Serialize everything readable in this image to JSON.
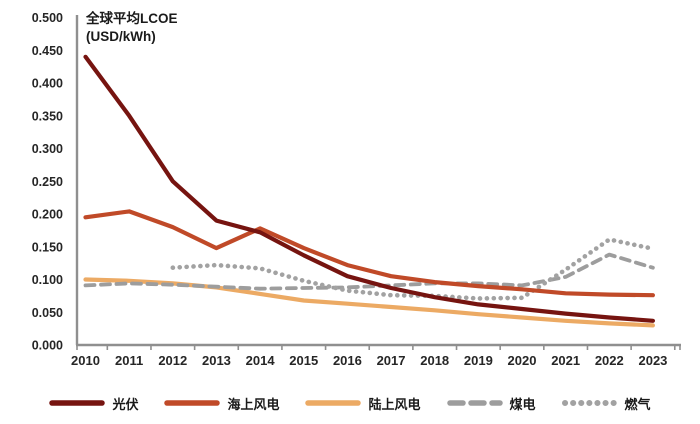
{
  "chart_data": {
    "type": "line",
    "title": "全球平均LCOE",
    "title_unit": "(USD/kWh)",
    "legend_position": "bottom",
    "grid": false,
    "x_categories": [
      "2010",
      "2011",
      "2012",
      "2013",
      "2014",
      "2015",
      "2016",
      "2017",
      "2018",
      "2019",
      "2020",
      "2021",
      "2022",
      "2023"
    ],
    "y_axis": {
      "min": 0.0,
      "max": 0.5,
      "step": 0.05,
      "ticks": [
        "0.500",
        "0.450",
        "0.400",
        "0.350",
        "0.300",
        "0.250",
        "0.200",
        "0.150",
        "0.100",
        "0.050",
        "0.000"
      ]
    },
    "series": [
      {
        "id": "onshore-wind",
        "name": "陆上风电",
        "color": "#ecaa64",
        "style": "solid",
        "legend_order": 3,
        "values": [
          0.1,
          0.098,
          0.094,
          0.088,
          0.078,
          0.068,
          0.063,
          0.058,
          0.053,
          0.047,
          0.042,
          0.037,
          0.033,
          0.03
        ]
      },
      {
        "id": "coal-power",
        "name": "煤电",
        "color": "#9d9d9d",
        "style": "dashed",
        "legend_order": 4,
        "values": [
          0.091,
          0.094,
          0.092,
          0.089,
          0.086,
          0.087,
          0.088,
          0.091,
          0.094,
          0.094,
          0.091,
          0.104,
          0.138,
          0.118
        ]
      },
      {
        "id": "gas-power",
        "name": "燃气",
        "color": "#a2a2a2",
        "style": "dotted",
        "legend_order": 5,
        "values": [
          null,
          null,
          0.118,
          0.122,
          0.117,
          0.098,
          0.083,
          0.076,
          0.075,
          0.071,
          0.072,
          0.115,
          0.161,
          0.147
        ]
      },
      {
        "id": "offshore-wind",
        "name": "海上风电",
        "color": "#c04a28",
        "style": "solid",
        "legend_order": 2,
        "values": [
          0.195,
          0.204,
          0.18,
          0.148,
          0.178,
          0.148,
          0.122,
          0.105,
          0.096,
          0.09,
          0.085,
          0.079,
          0.077,
          0.076
        ]
      },
      {
        "id": "solar-pv",
        "name": "光伏",
        "color": "#761410",
        "style": "solid",
        "legend_order": 1,
        "values": [
          0.44,
          0.35,
          0.25,
          0.19,
          0.172,
          0.137,
          0.105,
          0.087,
          0.073,
          0.062,
          0.055,
          0.048,
          0.042,
          0.037
        ]
      }
    ]
  },
  "colors": {
    "axis": "#8f8f8f",
    "tick_text": "#262626",
    "title_text": "#1a1a1a",
    "background": "#ffffff"
  }
}
